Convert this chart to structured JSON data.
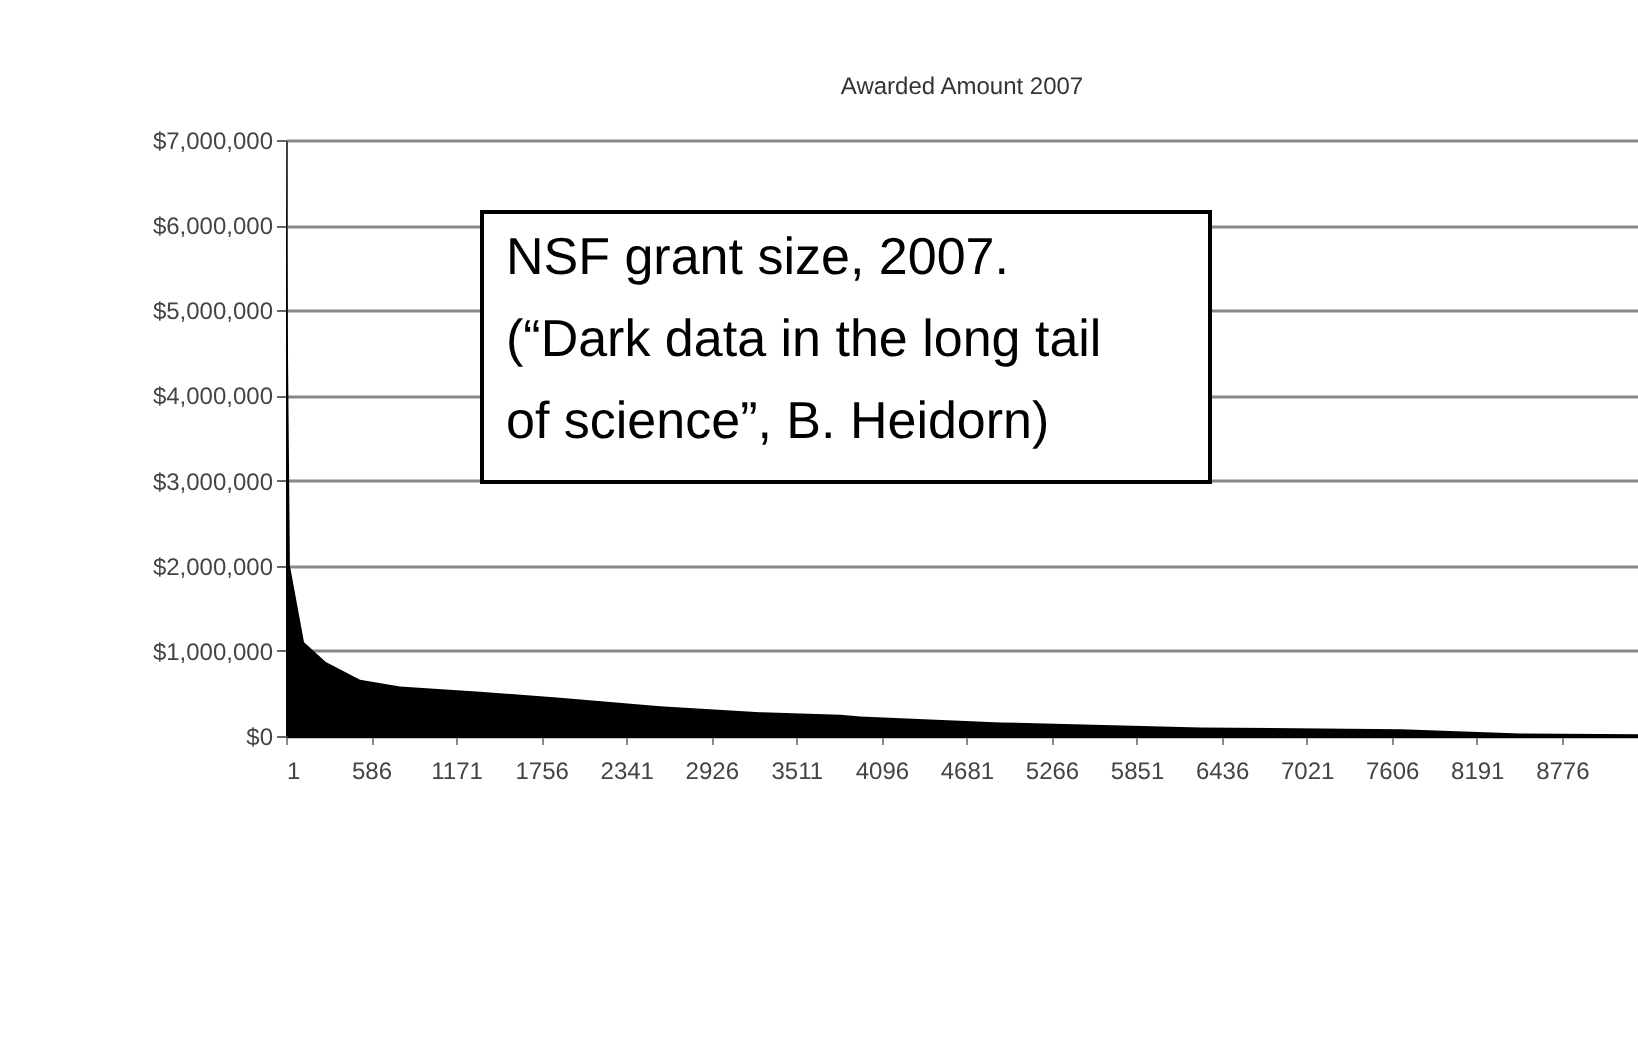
{
  "chart_data": {
    "type": "area",
    "title": "Awarded Amount 2007",
    "x": [
      1,
      28,
      125,
      275,
      510,
      785,
      1335,
      1886,
      2574,
      3260,
      3813,
      3950,
      4915,
      6290,
      7670,
      8490,
      9300
    ],
    "series": [
      {
        "color": "#000000",
        "values": [
          7000000,
          2000000,
          1100000,
          870000,
          660000,
          580000,
          520000,
          450000,
          350000,
          280000,
          250000,
          230000,
          160000,
          100000,
          80000,
          30000,
          20000
        ]
      }
    ],
    "xlim": [
      1,
      9300
    ],
    "xticks": [
      1,
      586,
      1171,
      1756,
      2341,
      2926,
      3511,
      4096,
      4681,
      5266,
      5851,
      6436,
      7021,
      7606,
      8191,
      8776
    ],
    "ylim": [
      0,
      7000000
    ],
    "yticks": [
      {
        "value": 0,
        "label": "$0"
      },
      {
        "value": 1000000,
        "label": "$1,000,000"
      },
      {
        "value": 2000000,
        "label": "$2,000,000"
      },
      {
        "value": 3000000,
        "label": "$3,000,000"
      },
      {
        "value": 4000000,
        "label": "$4,000,000"
      },
      {
        "value": 5000000,
        "label": "$5,000,000"
      },
      {
        "value": 6000000,
        "label": "$6,000,000"
      },
      {
        "value": 7000000,
        "label": "$7,000,000"
      }
    ],
    "grid": "y",
    "annotations": [
      "NSF grant size, 2007.\n(“Dark data in the long tail\nof science”, B. Heidorn)"
    ]
  }
}
